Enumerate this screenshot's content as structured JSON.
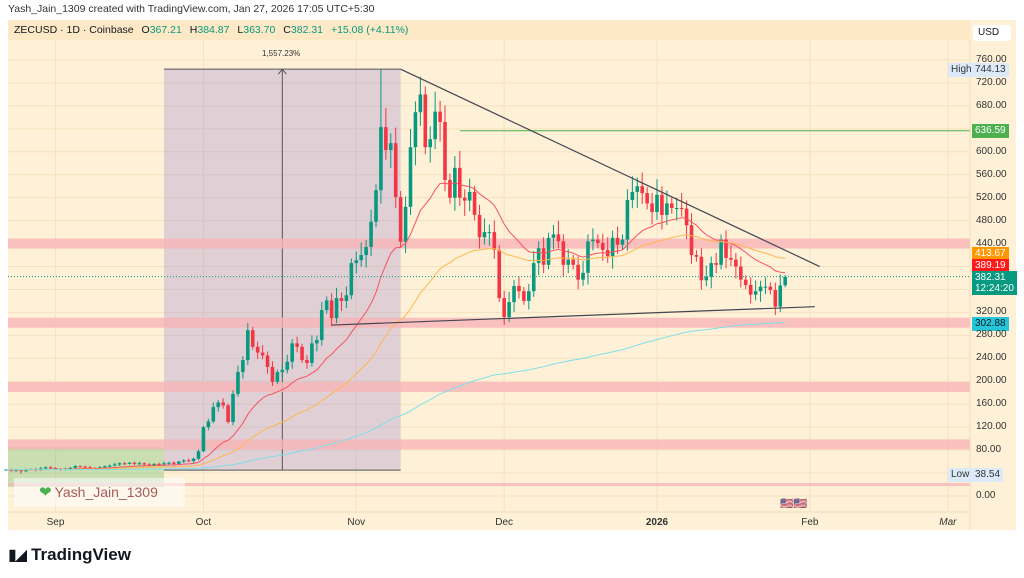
{
  "credit": "Yash_Jain_1309 created with TradingView.com, Jan 27, 2026 17:05 UTC+5:30",
  "legend": {
    "symbol": "ZECUSD · 1D · Coinbase",
    "o_label": "O",
    "o": "367.21",
    "h_label": "H",
    "h": "384.87",
    "l_label": "L",
    "l": "363.70",
    "c_label": "C",
    "c": "382.31",
    "change": "+15.08 (+4.11%)"
  },
  "currency": "USD",
  "watermark": "Yash_Jain_1309",
  "brand": "TradingView",
  "measure_label": "1,557.23%",
  "colors": {
    "up": "#089981",
    "down": "#f23645",
    "ema_fast": "#f7525f",
    "ema_mid": "#ffb74d",
    "ema_slow": "#80deea",
    "zone": "#f8b4b8",
    "background": "#fef1d7"
  },
  "price_labels": {
    "high_label": "High",
    "high": "744.13",
    "level": "636.59",
    "ema_mid": "413.67",
    "ema_fast": "389.19",
    "last": "382.31",
    "countdown": "12:24:20",
    "ema_slow": "302.88",
    "low_label": "Low",
    "low": "38.54"
  },
  "chart_data": {
    "type": "candlestick",
    "symbol": "ZECUSD",
    "interval": "1D",
    "ylim": [
      0,
      760
    ],
    "yticks": [
      "760.00",
      "720.00",
      "680.00",
      "600.00",
      "560.00",
      "520.00",
      "480.00",
      "440.00",
      "320.00",
      "280.00",
      "240.00",
      "200.00",
      "160.00",
      "120.00",
      "80.00",
      "0.00"
    ],
    "xticks": [
      {
        "label": "Sep",
        "date": "2025-09-01"
      },
      {
        "label": "Oct",
        "date": "2025-10-01"
      },
      {
        "label": "Nov",
        "date": "2025-11-01"
      },
      {
        "label": "Dec",
        "date": "2025-12-01"
      },
      {
        "label": "2026",
        "date": "2026-01-01"
      },
      {
        "label": "Feb",
        "date": "2026-02-01"
      },
      {
        "label": "Mar",
        "date": "2026-03-01"
      }
    ],
    "daily_closes": [
      {
        "month": "2025-08",
        "from_day": 22,
        "closes": [
          46,
          44,
          45,
          43,
          46,
          47,
          45,
          48,
          50,
          49
        ]
      },
      {
        "month": "2025-09",
        "from_day": 1,
        "closes": [
          47,
          46,
          47,
          49,
          52,
          51,
          50,
          49,
          48,
          50,
          52,
          53,
          55,
          57,
          56,
          58,
          56,
          57,
          55,
          54,
          56,
          55,
          57,
          58,
          56,
          60,
          62,
          61,
          65,
          78
        ]
      },
      {
        "month": "2025-10",
        "from_day": 1,
        "closes": [
          120,
          130,
          155,
          163,
          158,
          129,
          178,
          216,
          237,
          289,
          260,
          250,
          245,
          225,
          199,
          216,
          220,
          234,
          266,
          260,
          237,
          232,
          266,
          272,
          324,
          341,
          310,
          345,
          340,
          350,
          406
        ]
      },
      {
        "month": "2025-11",
        "from_day": 1,
        "closes": [
          411,
          420,
          434,
          478,
          533,
          643,
          603,
          615,
          521,
          443,
          504,
          608,
          669,
          700,
          608,
          622,
          670,
          652,
          551,
          520,
          572,
          520,
          515,
          530,
          490,
          451,
          460,
          460,
          429,
          345
        ]
      },
      {
        "month": "2025-12",
        "from_day": 1,
        "closes": [
          312,
          338,
          366,
          357,
          340,
          357,
          406,
          432,
          403,
          450,
          456,
          444,
          403,
          412,
          403,
          377,
          389,
          444,
          447,
          441,
          429,
          418,
          450,
          438,
          447,
          516,
          530,
          540,
          528,
          510,
          495
        ]
      },
      {
        "month": "2026-01",
        "from_day": 1,
        "closes": [
          525,
          490,
          510,
          502,
          502,
          501,
          472,
          420,
          417,
          376,
          382,
          406,
          403,
          447,
          415,
          412,
          400,
          377,
          368,
          351,
          357,
          365,
          365,
          359,
          330,
          367,
          382
        ]
      }
    ],
    "last_candle": {
      "open": 367.21,
      "high": 384.87,
      "low": 363.7,
      "close": 382.31
    },
    "all_time_high": 744.13,
    "period_low": 38.54,
    "horizontal_level": 636.59,
    "support_zones": [
      440,
      302,
      190,
      90,
      20
    ],
    "trendlines": [
      {
        "name": "upper",
        "from": {
          "date": "2025-11-10",
          "price": 744
        },
        "to": {
          "date": "2026-02-03",
          "price": 400
        }
      },
      {
        "name": "lower",
        "from": {
          "date": "2025-10-27",
          "price": 298
        },
        "to": {
          "date": "2026-02-02",
          "price": 330
        }
      }
    ],
    "moving_averages": [
      {
        "color": "#f7525f",
        "last": 389.19
      },
      {
        "color": "#ffb74d",
        "last": 413.67
      },
      {
        "color": "#80deea",
        "last": 302.88
      }
    ],
    "measurement": {
      "from_date": "2025-09-23",
      "to_date": "2025-11-10",
      "from_price": 45,
      "to_price": 744,
      "label": "1,557.23%"
    }
  }
}
